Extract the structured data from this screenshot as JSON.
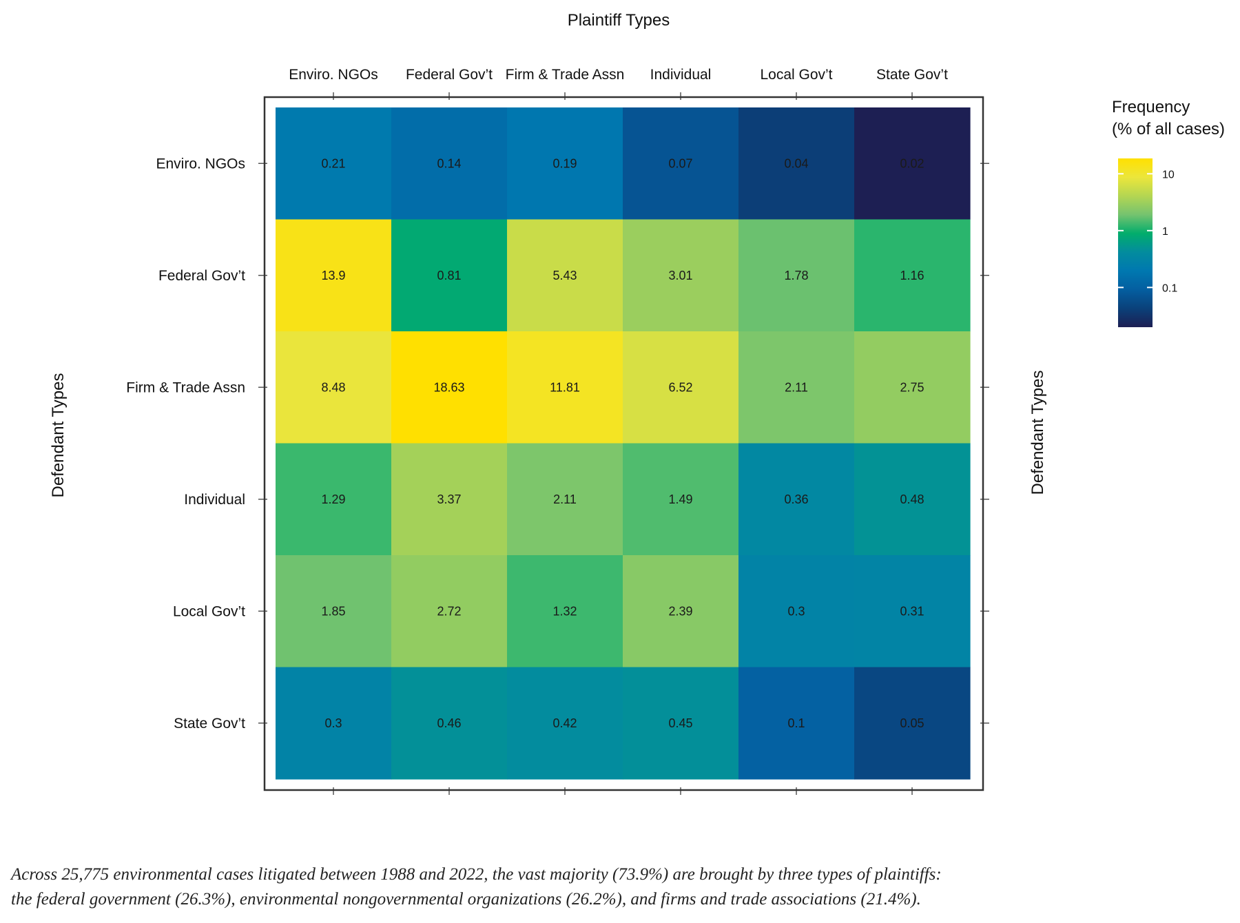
{
  "chart_data": {
    "type": "heatmap",
    "title": "Plaintiff Types",
    "xlabel": "Plaintiff Types",
    "ylabel": "Defendant Types",
    "ylabel_right": "Defendant Types",
    "x_categories": [
      "Enviro. NGOs",
      "Federal Gov’t",
      "Firm & Trade Assn",
      "Individual",
      "Local Gov’t",
      "State Gov’t"
    ],
    "y_categories": [
      "Enviro. NGOs",
      "Federal Gov’t",
      "Firm & Trade Assn",
      "Individual",
      "Local Gov’t",
      "State Gov’t"
    ],
    "values": [
      [
        0.21,
        0.14,
        0.19,
        0.07,
        0.04,
        0.02
      ],
      [
        13.9,
        0.81,
        5.43,
        3.01,
        1.78,
        1.16
      ],
      [
        8.48,
        18.63,
        11.81,
        6.52,
        2.11,
        2.75
      ],
      [
        1.29,
        3.37,
        2.11,
        1.49,
        0.36,
        0.48
      ],
      [
        1.85,
        2.72,
        1.32,
        2.39,
        0.3,
        0.31
      ],
      [
        0.3,
        0.46,
        0.42,
        0.45,
        0.1,
        0.05
      ]
    ],
    "value_labels": [
      [
        "0.21",
        "0.14",
        "0.19",
        "0.07",
        "0.04",
        "0.02"
      ],
      [
        "13.9",
        "0.81",
        "5.43",
        "3.01",
        "1.78",
        "1.16"
      ],
      [
        "8.48",
        "18.63",
        "11.81",
        "6.52",
        "2.11",
        "2.75"
      ],
      [
        "1.29",
        "3.37",
        "2.11",
        "1.49",
        "0.36",
        "0.48"
      ],
      [
        "1.85",
        "2.72",
        "1.32",
        "2.39",
        "0.3",
        "0.31"
      ],
      [
        "0.3",
        "0.46",
        "0.42",
        "0.45",
        "0.1",
        "0.05"
      ]
    ],
    "legend": {
      "title_line1": "Frequency",
      "title_line2": "(% of all cases)",
      "scale": "log",
      "range": [
        0.02,
        18.63
      ],
      "ticks": [
        10,
        1,
        0.1
      ],
      "tick_labels": [
        "10",
        "1",
        "0.1"
      ],
      "position": "top-right"
    },
    "colors": {
      "scale": [
        "#1d1f53",
        "#0a417a",
        "#045ea0",
        "#0078b0",
        "#038c9e",
        "#02ad6c",
        "#75c36f",
        "#b4d652",
        "#ece63b",
        "#ffe000"
      ],
      "cell_text": "#1a1a1a",
      "frame": "#333333"
    }
  },
  "caption": {
    "line1": "Across 25,775 environmental cases litigated between 1988 and 2022, the vast majority (73.9%) are brought by three types of plaintiffs:",
    "line2": "the federal government (26.3%), environmental nongovernmental organizations (26.2%), and firms and trade associations (21.4%)."
  }
}
